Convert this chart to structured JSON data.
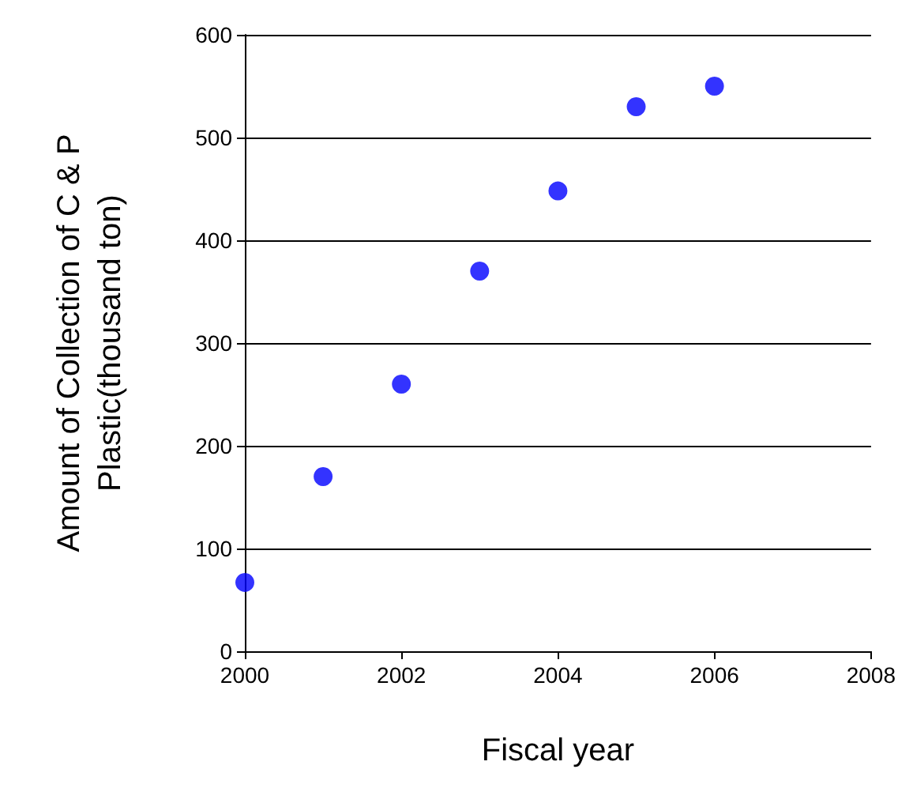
{
  "chart_data": {
    "type": "scatter",
    "xlabel": "Fiscal year",
    "ylabel": "Amount of Collection of C & P\nPlastic(thousand ton)",
    "x": [
      2000,
      2001,
      2002,
      2003,
      2004,
      2005,
      2006
    ],
    "series": [
      {
        "color": "#0000ff",
        "values": [
          67,
          170,
          260,
          370,
          448,
          530,
          550
        ]
      }
    ],
    "xlim": [
      2000,
      2008
    ],
    "xticks": [
      2000,
      2002,
      2004,
      2006,
      2008
    ],
    "ylim": [
      0,
      600
    ],
    "yticks": [
      0,
      100,
      200,
      300,
      400,
      500,
      600
    ],
    "grid": "y",
    "marker": "circle"
  }
}
